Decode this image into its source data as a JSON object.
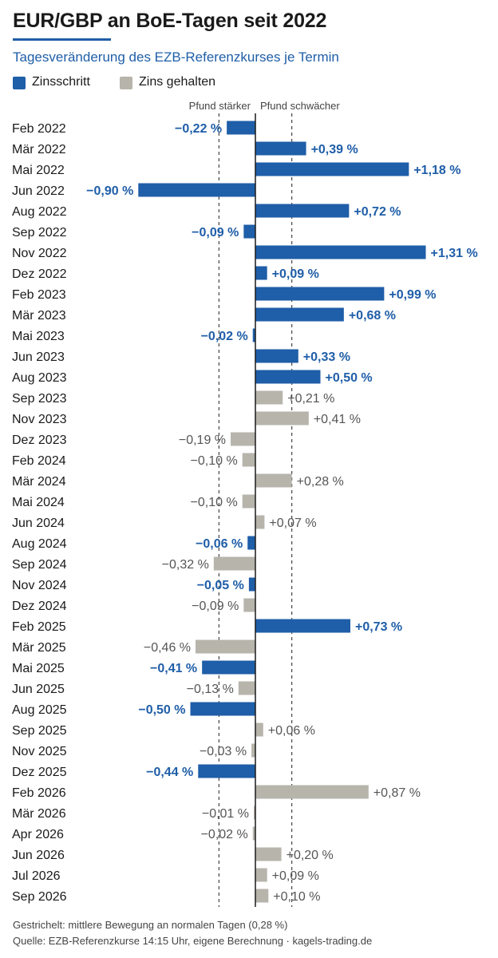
{
  "header": {
    "title": "EUR/GBP an BoE-Tagen seit 2022",
    "subtitle": "Tagesveränderung des EZB-Referenzkurses je Termin"
  },
  "legend": [
    {
      "label": "Zinsschritt",
      "color": "#1f5ea8"
    },
    {
      "label": "Zins gehalten",
      "color": "#b7b4ac"
    }
  ],
  "chart_data": {
    "type": "bar",
    "orientation": "horizontal",
    "zero_side_labels": {
      "negative": "Pfund stärker",
      "positive": "Pfund schwächer"
    },
    "reference_lines": [
      -0.28,
      0.28
    ],
    "categories": [
      "Feb 2022",
      "Mär 2022",
      "Mai 2022",
      "Jun 2022",
      "Aug 2022",
      "Sep 2022",
      "Nov 2022",
      "Dez 2022",
      "Feb 2023",
      "Mär 2023",
      "Mai 2023",
      "Jun 2023",
      "Aug 2023",
      "Sep 2023",
      "Nov 2023",
      "Dez 2023",
      "Feb 2024",
      "Mär 2024",
      "Mai 2024",
      "Jun 2024",
      "Aug 2024",
      "Sep 2024",
      "Nov 2024",
      "Dez 2024",
      "Feb 2025",
      "Mär 2025",
      "Mai 2025",
      "Jun 2025",
      "Aug 2025",
      "Sep 2025",
      "Nov 2025",
      "Dez 2025",
      "Feb 2026",
      "Mär 2026",
      "Apr 2026",
      "Jun 2026",
      "Jul 2026",
      "Sep 2026"
    ],
    "values": [
      -0.22,
      0.39,
      1.18,
      -0.9,
      0.72,
      -0.09,
      1.31,
      0.09,
      0.99,
      0.68,
      -0.02,
      0.33,
      0.5,
      0.21,
      0.41,
      -0.19,
      -0.1,
      0.28,
      -0.1,
      0.07,
      -0.06,
      -0.32,
      -0.05,
      -0.09,
      0.73,
      -0.46,
      -0.41,
      -0.13,
      -0.5,
      0.06,
      -0.03,
      -0.44,
      0.87,
      -0.01,
      -0.02,
      0.2,
      0.09,
      0.1
    ],
    "value_labels": [
      "−0,22 %",
      "+0,39 %",
      "+1,18 %",
      "−0,90 %",
      "+0,72 %",
      "−0,09 %",
      "+1,31 %",
      "+0,09 %",
      "+0,99 %",
      "+0,68 %",
      "−0,02 %",
      "+0,33 %",
      "+0,50 %",
      "+0,21 %",
      "+0,41 %",
      "−0,19 %",
      "−0,10 %",
      "+0,28 %",
      "−0,10 %",
      "+0,07 %",
      "−0,06 %",
      "−0,32 %",
      "−0,05 %",
      "−0,09 %",
      "+0,73 %",
      "−0,46 %",
      "−0,41 %",
      "−0,13 %",
      "−0,50 %",
      "+0,06 %",
      "−0,03 %",
      "−0,44 %",
      "+0,87 %",
      "−0,01 %",
      "−0,02 %",
      "+0,20 %",
      "+0,09 %",
      "+0,10 %"
    ],
    "rate_move": [
      true,
      true,
      true,
      true,
      true,
      true,
      true,
      true,
      true,
      true,
      true,
      true,
      true,
      false,
      false,
      false,
      false,
      false,
      false,
      false,
      true,
      false,
      true,
      false,
      true,
      false,
      true,
      false,
      true,
      false,
      false,
      true,
      false,
      false,
      false,
      false,
      false,
      false
    ]
  },
  "footer": {
    "note": "Gestrichelt: mittlere Bewegung an normalen Tagen (0,28 %)",
    "source": "Quelle: EZB-Referenzkurse 14:15 Uhr, eigene Berechnung · kagels-trading.de"
  }
}
